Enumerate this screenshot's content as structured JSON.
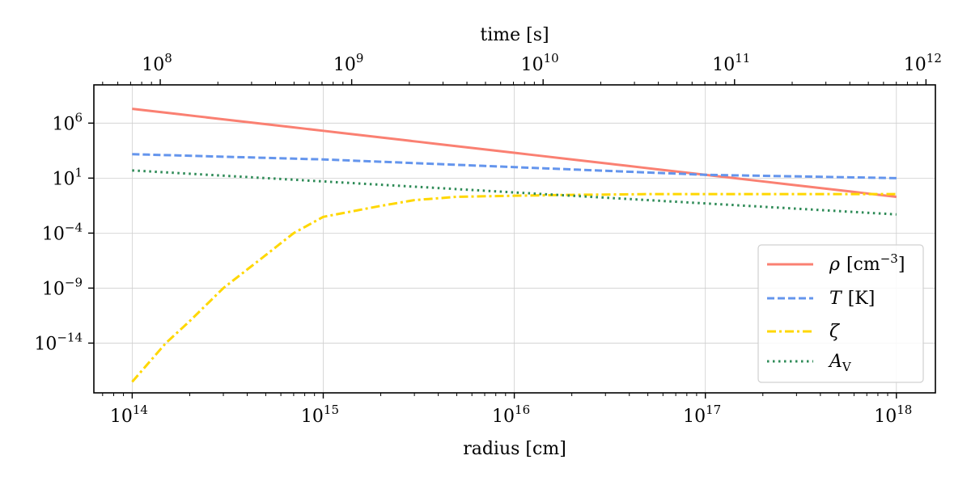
{
  "chart_data": {
    "type": "line",
    "title": "",
    "xlabel": "radius [cm]",
    "ylabel": "",
    "top_xlabel": "time [s]",
    "xscale": "log",
    "yscale": "log",
    "xlim": [
      63000000000000.0,
      1.6e+18
    ],
    "ylim": [
      3e-19,
      3000000000.0
    ],
    "top_xlim": [
      45000000.0,
      1120000000000.0
    ],
    "x_ticks": [
      {
        "value": 100000000000000.0,
        "base": "10",
        "exp": "14"
      },
      {
        "value": 1000000000000000.0,
        "base": "10",
        "exp": "15"
      },
      {
        "value": 1e+16,
        "base": "10",
        "exp": "16"
      },
      {
        "value": 1e+17,
        "base": "10",
        "exp": "17"
      },
      {
        "value": 1e+18,
        "base": "10",
        "exp": "18"
      }
    ],
    "y_ticks": [
      {
        "value": 1000000.0,
        "base": "10",
        "exp": "6"
      },
      {
        "value": 10,
        "base": "10",
        "exp": "1"
      },
      {
        "value": 0.0001,
        "base": "10",
        "exp": "−4"
      },
      {
        "value": 1e-09,
        "base": "10",
        "exp": "−9"
      },
      {
        "value": 1e-14,
        "base": "10",
        "exp": "−14"
      }
    ],
    "top_ticks": [
      {
        "value": 100000000.0,
        "base": "10",
        "exp": "8"
      },
      {
        "value": 1000000000.0,
        "base": "10",
        "exp": "9"
      },
      {
        "value": 10000000000.0,
        "base": "10",
        "exp": "10"
      },
      {
        "value": 100000000000.0,
        "base": "10",
        "exp": "11"
      },
      {
        "value": 1000000000000.0,
        "base": "10",
        "exp": "12"
      }
    ],
    "grid": true,
    "legend_position": "lower-right",
    "series": [
      {
        "key": "rho",
        "name": "ρ",
        "unit_base": "[cm",
        "unit_exp": "−3",
        "unit_close": "]",
        "color": "#fa8072",
        "dash": "solid",
        "x": [
          100000000000000.0,
          1000000000000000.0,
          1e+16,
          1e+17,
          1e+18
        ],
        "y": [
          20000000.0,
          200000.0,
          2000.0,
          20.0,
          0.2
        ]
      },
      {
        "key": "T",
        "name": "T",
        "unit": "[K]",
        "color": "#6495ed",
        "dash": "dashed",
        "x": [
          100000000000000.0,
          1000000000000000.0,
          1e+16,
          1e+17,
          1e+18
        ],
        "y": [
          1500,
          500,
          100,
          20,
          10
        ]
      },
      {
        "key": "zeta",
        "name": "ζ",
        "color": "#ffd700",
        "dash": "dashdot",
        "x": [
          100000000000000.0,
          150000000000000.0,
          200000000000000.0,
          300000000000000.0,
          500000000000000.0,
          700000000000000.0,
          1000000000000000.0,
          2000000000000000.0,
          3000000000000000.0,
          5000000000000000.0,
          1e+16,
          2e+16,
          5e+16,
          1e+17,
          3e+17,
          1e+18
        ],
        "y": [
          3e-18,
          1e-14,
          1e-12,
          1e-09,
          1e-06,
          0.0001,
          0.003,
          0.03,
          0.1,
          0.2,
          0.25,
          0.3,
          0.35,
          0.35,
          0.35,
          0.35
        ]
      },
      {
        "key": "Av",
        "name": "A",
        "sub": "V",
        "color": "#2e8b57",
        "dash": "dotted",
        "x": [
          100000000000000.0,
          1000000000000000.0,
          1e+16,
          1e+17,
          1e+18
        ],
        "y": [
          50,
          5,
          0.5,
          0.05,
          0.005
        ]
      }
    ]
  }
}
